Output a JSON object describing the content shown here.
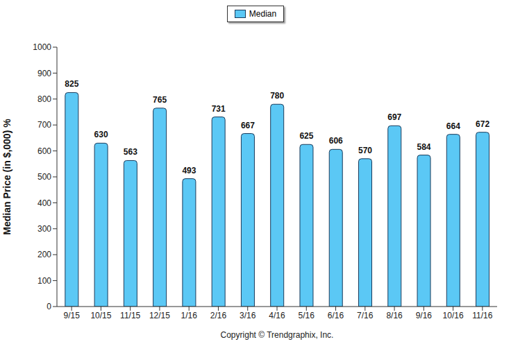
{
  "chart_data": {
    "type": "bar",
    "ylabel": "Median Price (in $,000) %",
    "categories": [
      "9/15",
      "10/15",
      "11/15",
      "12/15",
      "1/16",
      "2/16",
      "3/16",
      "4/16",
      "5/16",
      "6/16",
      "7/16",
      "8/16",
      "9/16",
      "10/16",
      "11/16"
    ],
    "series": [
      {
        "name": "Median",
        "color": "#5bc8f5",
        "values": [
          825,
          630,
          563,
          765,
          493,
          731,
          667,
          780,
          625,
          606,
          570,
          697,
          584,
          664,
          672
        ]
      }
    ],
    "ylim": [
      0,
      1000
    ],
    "yticks": [
      0,
      100,
      200,
      300,
      400,
      500,
      600,
      700,
      800,
      900,
      1000
    ],
    "grid": false,
    "legend": "top",
    "data_labels": true,
    "annotations": [
      "Copyright © Trendgraphix, Inc."
    ]
  }
}
